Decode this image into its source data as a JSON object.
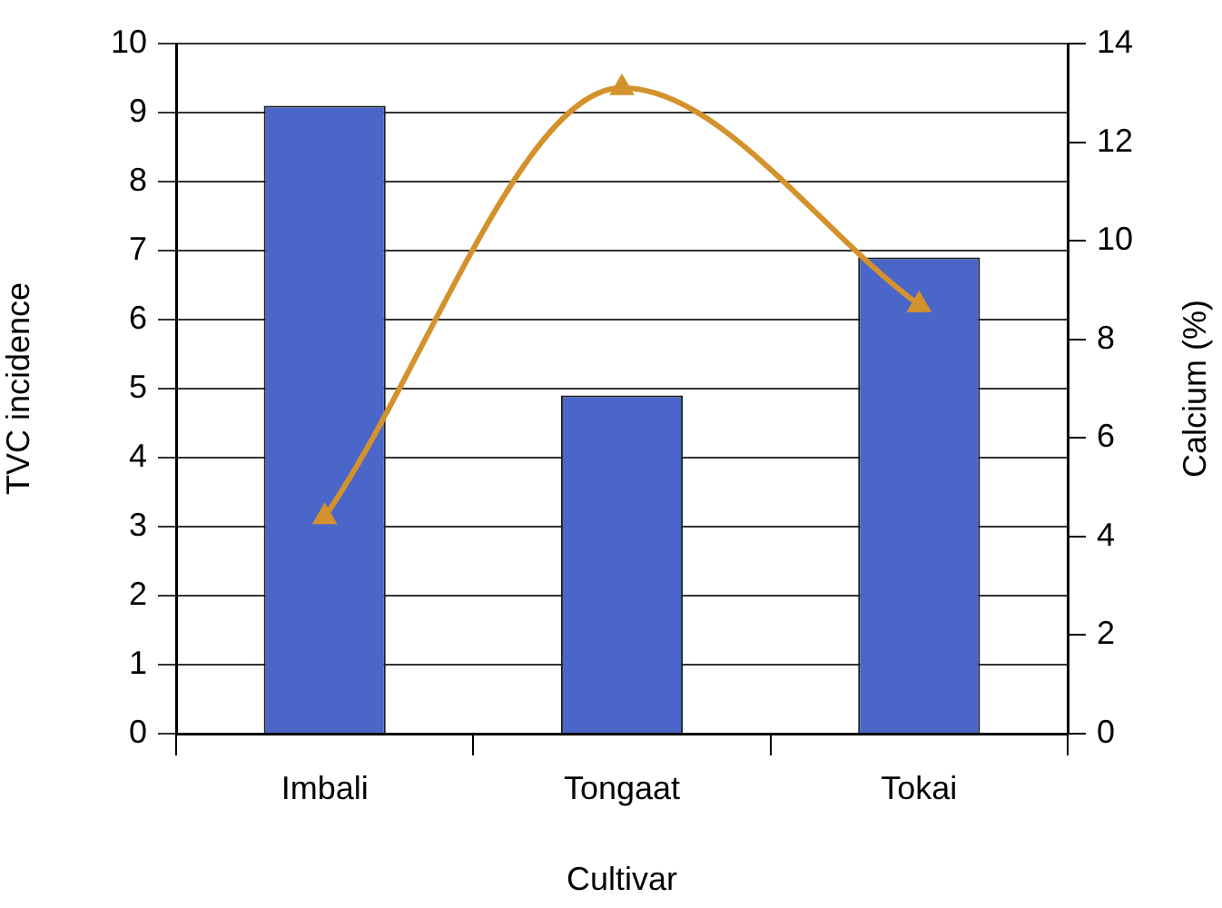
{
  "chart_data": {
    "type": "bar",
    "xlabel": "Cultivar",
    "ylabel": "TVC incidence",
    "y2label": "Calcium (%)",
    "categories": [
      "Imbali",
      "Tongaat",
      "Tokai"
    ],
    "series": [
      {
        "color": "#4a66c8",
        "values": [
          9.1,
          4.9,
          6.9
        ]
      },
      {
        "type": "line",
        "axis": "y2",
        "color": "#d4922c",
        "values": [
          4.4,
          13.1,
          8.7
        ]
      }
    ],
    "ylim": [
      0,
      10
    ],
    "yticks": [
      0,
      1,
      2,
      3,
      4,
      5,
      6,
      7,
      8,
      9,
      10
    ],
    "y2lim": [
      0,
      14
    ],
    "y2ticks": [
      0,
      2,
      4,
      6,
      8,
      10,
      12,
      14
    ],
    "grid": "y",
    "legend": false,
    "marker": "triangle",
    "line_style": "solid"
  }
}
